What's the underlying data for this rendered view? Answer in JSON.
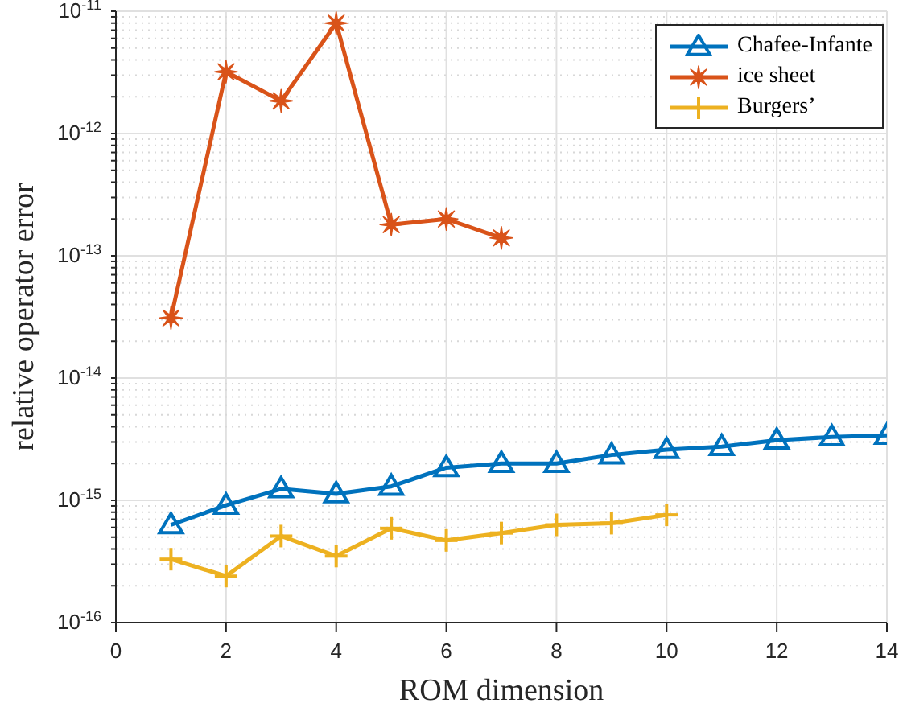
{
  "chart_data": {
    "type": "line",
    "xlabel": "ROM dimension",
    "ylabel": "relative operator error",
    "log": "y",
    "grid": true,
    "legend": "top right",
    "line_style": "solid",
    "xlim": [
      0,
      14
    ],
    "xticks": [
      0,
      2,
      4,
      6,
      8,
      10,
      12,
      14
    ],
    "ylim": [
      1e-16,
      1e-11
    ],
    "yticks": [
      {
        "value": 1e-16,
        "label": "10$^{-16}$"
      },
      {
        "value": 2e-16,
        "label": null
      },
      {
        "value": 3e-16,
        "label": null
      },
      {
        "value": 4e-16,
        "label": null
      },
      {
        "value": 5e-16,
        "label": null
      },
      {
        "value": 6e-16,
        "label": null
      },
      {
        "value": 7e-16,
        "label": null
      },
      {
        "value": 8e-16,
        "label": null
      },
      {
        "value": 9e-16,
        "label": null
      },
      {
        "value": 1e-15,
        "label": "10$^{-15}$"
      },
      {
        "value": 2e-15,
        "label": null
      },
      {
        "value": 3e-15,
        "label": null
      },
      {
        "value": 4e-15,
        "label": null
      },
      {
        "value": 5e-15,
        "label": null
      },
      {
        "value": 6e-15,
        "label": null
      },
      {
        "value": 7e-15,
        "label": null
      },
      {
        "value": 8e-15,
        "label": null
      },
      {
        "value": 9e-15,
        "label": null
      },
      {
        "value": 1e-14,
        "label": "10$^{-14}$"
      },
      {
        "value": 2e-14,
        "label": null
      },
      {
        "value": 3e-14,
        "label": null
      },
      {
        "value": 4e-14,
        "label": null
      },
      {
        "value": 5e-14,
        "label": null
      },
      {
        "value": 6e-14,
        "label": null
      },
      {
        "value": 7e-14,
        "label": null
      },
      {
        "value": 8e-14,
        "label": null
      },
      {
        "value": 9e-14,
        "label": null
      },
      {
        "value": 1e-13,
        "label": "10$^{-13}$"
      },
      {
        "value": 2e-13,
        "label": null
      },
      {
        "value": 3e-13,
        "label": null
      },
      {
        "value": 4e-13,
        "label": null
      },
      {
        "value": 5e-13,
        "label": null
      },
      {
        "value": 6e-13,
        "label": null
      },
      {
        "value": 7e-13,
        "label": null
      },
      {
        "value": 8e-13,
        "label": null
      },
      {
        "value": 9e-13,
        "label": null
      },
      {
        "value": 1e-12,
        "label": "10$^{-12}$"
      },
      {
        "value": 2e-12,
        "label": null
      },
      {
        "value": 3e-12,
        "label": null
      },
      {
        "value": 4e-12,
        "label": null
      },
      {
        "value": 5e-12,
        "label": null
      },
      {
        "value": 6e-12,
        "label": null
      },
      {
        "value": 7e-12,
        "label": null
      },
      {
        "value": 8e-12,
        "label": null
      },
      {
        "value": 9e-12,
        "label": null
      },
      {
        "value": 1e-11,
        "label": "10$^{-11}$"
      }
    ],
    "series": [
      {
        "name": "Chafee-Infante",
        "color": "#0072bd",
        "marker": "triangle",
        "x": [
          1,
          2,
          3,
          4,
          5,
          6,
          7,
          8,
          9,
          10,
          11,
          12,
          13,
          14
        ],
        "values": [
          6.3e-16,
          9.1e-16,
          1.24e-15,
          1.13e-15,
          1.3e-15,
          1.85e-15,
          2e-15,
          2e-15,
          2.35e-15,
          2.6e-15,
          2.75e-15,
          3.1e-15,
          3.3e-15,
          3.4e-15
        ]
      },
      {
        "name": "ice sheet",
        "color": "#d95319",
        "marker": "star",
        "x": [
          1,
          2,
          3,
          4,
          5,
          6,
          7
        ],
        "values": [
          3.1e-14,
          3.2e-12,
          1.85e-12,
          8e-12,
          1.8e-13,
          2e-13,
          1.4e-13
        ]
      },
      {
        "name": "Burgers’",
        "color": "#edb120",
        "marker": "cross",
        "x": [
          1,
          2,
          3,
          4,
          5,
          6,
          7,
          8,
          9,
          10
        ],
        "values": [
          3.3e-16,
          2.4e-16,
          5.1e-16,
          3.5e-16,
          5.9e-16,
          4.7e-16,
          5.4e-16,
          6.3e-16,
          6.5e-16,
          7.6e-16
        ]
      }
    ]
  }
}
